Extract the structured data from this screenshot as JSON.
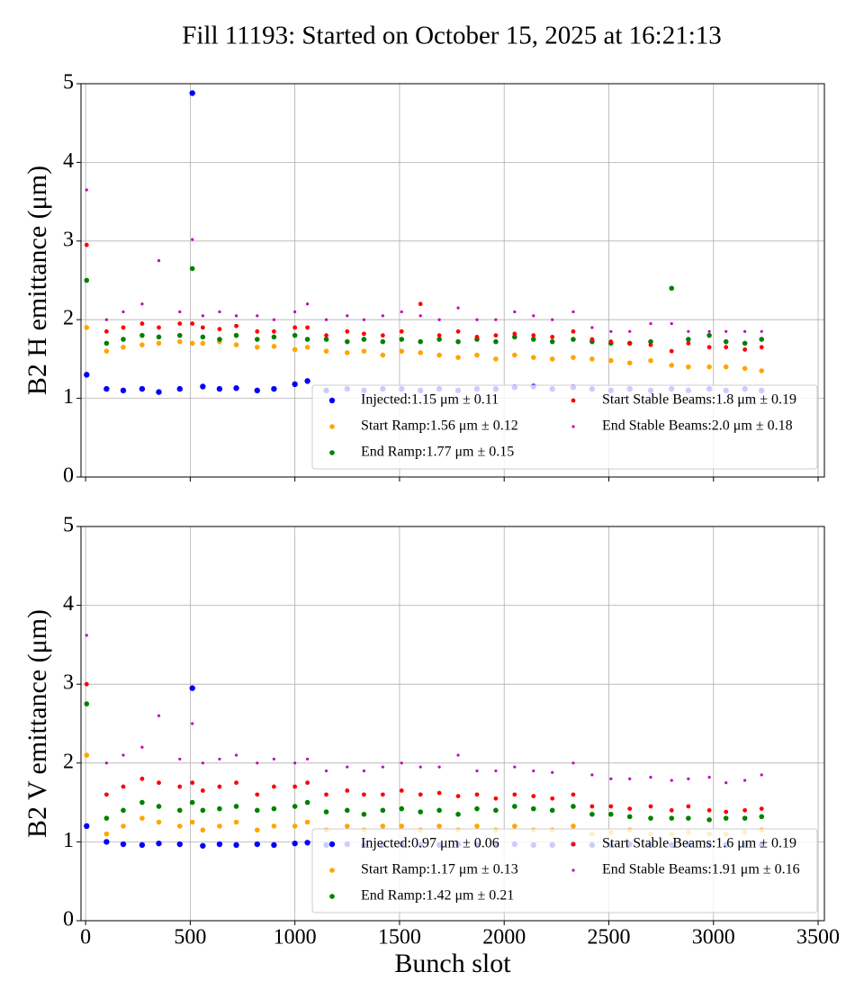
{
  "title": "Fill 11193: Started on October 15, 2025 at 16:21:13",
  "chart_data": [
    {
      "type": "scatter",
      "ylabel": "B2 H emittance (μm)",
      "xlim": [
        -22,
        3530
      ],
      "ylim": [
        0,
        5
      ],
      "xticks": [
        0,
        500,
        1000,
        1500,
        2000,
        2500,
        3000,
        3500
      ],
      "yticks": [
        0,
        1,
        2,
        3,
        4,
        5
      ],
      "xtick_labels": false,
      "grid": true,
      "legend": "lower right",
      "legend_columns": 2,
      "x": [
        5,
        100,
        180,
        270,
        350,
        450,
        510,
        560,
        640,
        720,
        820,
        900,
        1000,
        1060,
        1150,
        1250,
        1330,
        1420,
        1510,
        1600,
        1690,
        1780,
        1870,
        1960,
        2050,
        2140,
        2230,
        2330,
        2420,
        2510,
        2600,
        2700,
        2800,
        2880,
        2980,
        3060,
        3150,
        3230
      ],
      "series": [
        {
          "name": "Injected:1.15 μm ± 0.11",
          "color": "#0000ff",
          "values": [
            1.3,
            1.12,
            1.1,
            1.12,
            1.08,
            1.12,
            4.88,
            1.15,
            1.12,
            1.13,
            1.1,
            1.12,
            1.18,
            1.22,
            1.1,
            1.12,
            1.1,
            1.12,
            1.12,
            1.1,
            1.12,
            1.1,
            1.12,
            1.12,
            1.14,
            1.15,
            1.12,
            1.14,
            1.12,
            1.1,
            1.12,
            1.1,
            1.12,
            1.1,
            1.12,
            1.1,
            1.12,
            1.1
          ]
        },
        {
          "name": "Start Ramp:1.56 μm ± 0.12",
          "color": "#ffa500",
          "values": [
            1.9,
            1.6,
            1.65,
            1.68,
            1.7,
            1.72,
            1.7,
            1.7,
            1.72,
            1.68,
            1.65,
            1.66,
            1.62,
            1.65,
            1.6,
            1.58,
            1.6,
            1.55,
            1.6,
            1.58,
            1.55,
            1.52,
            1.55,
            1.5,
            1.55,
            1.52,
            1.5,
            1.52,
            1.5,
            1.48,
            1.45,
            1.48,
            1.42,
            1.4,
            1.4,
            1.4,
            1.38,
            1.35
          ]
        },
        {
          "name": "End Ramp:1.77 μm ± 0.15",
          "color": "#008000",
          "values": [
            2.5,
            1.7,
            1.75,
            1.8,
            1.78,
            1.8,
            2.65,
            1.78,
            1.75,
            1.8,
            1.75,
            1.78,
            1.8,
            1.75,
            1.75,
            1.72,
            1.75,
            1.72,
            1.75,
            1.72,
            1.75,
            1.72,
            1.75,
            1.72,
            1.78,
            1.75,
            1.72,
            1.75,
            1.72,
            1.7,
            1.7,
            1.72,
            2.4,
            1.75,
            1.8,
            1.72,
            1.7,
            1.75
          ]
        },
        {
          "name": "Start Stable Beams:1.8 μm ± 0.19",
          "color": "#ff0000",
          "values": [
            2.95,
            1.85,
            1.9,
            1.95,
            1.9,
            1.95,
            1.95,
            1.9,
            1.88,
            1.92,
            1.85,
            1.85,
            1.9,
            1.9,
            1.8,
            1.85,
            1.82,
            1.8,
            1.85,
            2.2,
            1.8,
            1.85,
            1.78,
            1.8,
            1.82,
            1.8,
            1.78,
            1.85,
            1.75,
            1.72,
            1.7,
            1.68,
            1.6,
            1.7,
            1.65,
            1.65,
            1.62,
            1.65
          ]
        },
        {
          "name": "End Stable Beams:2.0 μm ± 0.18",
          "color": "#bf00bf",
          "values": [
            3.65,
            2.0,
            2.1,
            2.2,
            2.75,
            2.1,
            3.02,
            2.05,
            2.1,
            2.05,
            2.05,
            2.0,
            2.1,
            2.2,
            2.0,
            2.05,
            2.0,
            2.05,
            2.1,
            2.05,
            2.0,
            2.15,
            2.0,
            2.0,
            2.1,
            2.05,
            2.0,
            2.1,
            1.9,
            1.85,
            1.85,
            1.95,
            1.95,
            1.85,
            1.85,
            1.85,
            1.85,
            1.85
          ]
        }
      ]
    },
    {
      "type": "scatter",
      "ylabel": "B2 V emittance (μm)",
      "xlabel": "Bunch slot",
      "xlim": [
        -22,
        3530
      ],
      "ylim": [
        0,
        5
      ],
      "xticks": [
        0,
        500,
        1000,
        1500,
        2000,
        2500,
        3000,
        3500
      ],
      "yticks": [
        0,
        1,
        2,
        3,
        4,
        5
      ],
      "xtick_labels": true,
      "grid": true,
      "legend": "lower right",
      "legend_columns": 2,
      "x": [
        5,
        100,
        180,
        270,
        350,
        450,
        510,
        560,
        640,
        720,
        820,
        900,
        1000,
        1060,
        1150,
        1250,
        1330,
        1420,
        1510,
        1600,
        1690,
        1780,
        1870,
        1960,
        2050,
        2140,
        2230,
        2330,
        2420,
        2510,
        2600,
        2700,
        2800,
        2880,
        2980,
        3060,
        3150,
        3230
      ],
      "series": [
        {
          "name": "Injected:0.97 μm ± 0.06",
          "color": "#0000ff",
          "values": [
            1.2,
            1.0,
            0.97,
            0.96,
            0.98,
            0.97,
            2.95,
            0.95,
            0.97,
            0.96,
            0.97,
            0.96,
            0.98,
            0.99,
            0.96,
            0.97,
            0.96,
            0.96,
            0.97,
            0.96,
            0.96,
            0.97,
            0.96,
            0.96,
            0.97,
            0.96,
            0.96,
            0.97,
            0.96,
            0.96,
            0.97,
            0.96,
            0.96,
            0.97,
            0.96,
            0.96,
            0.97,
            0.96
          ]
        },
        {
          "name": "Start Ramp:1.17 μm ± 0.13",
          "color": "#ffa500",
          "values": [
            2.1,
            1.1,
            1.2,
            1.3,
            1.25,
            1.2,
            1.25,
            1.15,
            1.2,
            1.25,
            1.15,
            1.2,
            1.2,
            1.25,
            1.15,
            1.2,
            1.15,
            1.2,
            1.2,
            1.15,
            1.2,
            1.15,
            1.2,
            1.15,
            1.2,
            1.15,
            1.15,
            1.2,
            1.1,
            1.12,
            1.15,
            1.1,
            1.1,
            1.12,
            1.1,
            1.1,
            1.12,
            1.15
          ]
        },
        {
          "name": "End Ramp:1.42 μm ± 0.21",
          "color": "#008000",
          "values": [
            2.75,
            1.3,
            1.4,
            1.5,
            1.45,
            1.4,
            1.5,
            1.4,
            1.42,
            1.45,
            1.4,
            1.42,
            1.45,
            1.5,
            1.38,
            1.4,
            1.35,
            1.4,
            1.42,
            1.38,
            1.4,
            1.35,
            1.42,
            1.4,
            1.45,
            1.42,
            1.4,
            1.45,
            1.35,
            1.35,
            1.32,
            1.3,
            1.3,
            1.3,
            1.28,
            1.3,
            1.3,
            1.32
          ]
        },
        {
          "name": "Start Stable Beams:1.6 μm ± 0.19",
          "color": "#ff0000",
          "values": [
            3.0,
            1.6,
            1.7,
            1.8,
            1.75,
            1.7,
            1.75,
            1.65,
            1.7,
            1.75,
            1.6,
            1.7,
            1.7,
            1.75,
            1.6,
            1.65,
            1.6,
            1.6,
            1.65,
            1.6,
            1.62,
            1.58,
            1.6,
            1.55,
            1.6,
            1.58,
            1.55,
            1.6,
            1.45,
            1.45,
            1.42,
            1.45,
            1.4,
            1.45,
            1.4,
            1.38,
            1.4,
            1.42
          ]
        },
        {
          "name": "End Stable Beams:1.91 μm ± 0.16",
          "color": "#bf00bf",
          "values": [
            3.62,
            2.0,
            2.1,
            2.2,
            2.6,
            2.05,
            2.5,
            2.0,
            2.05,
            2.1,
            2.0,
            2.05,
            2.0,
            2.05,
            1.9,
            1.95,
            1.9,
            1.95,
            2.0,
            1.95,
            1.95,
            2.1,
            1.9,
            1.9,
            1.95,
            1.9,
            1.88,
            2.0,
            1.85,
            1.8,
            1.8,
            1.82,
            1.78,
            1.8,
            1.82,
            1.75,
            1.78,
            1.85
          ]
        }
      ]
    }
  ]
}
